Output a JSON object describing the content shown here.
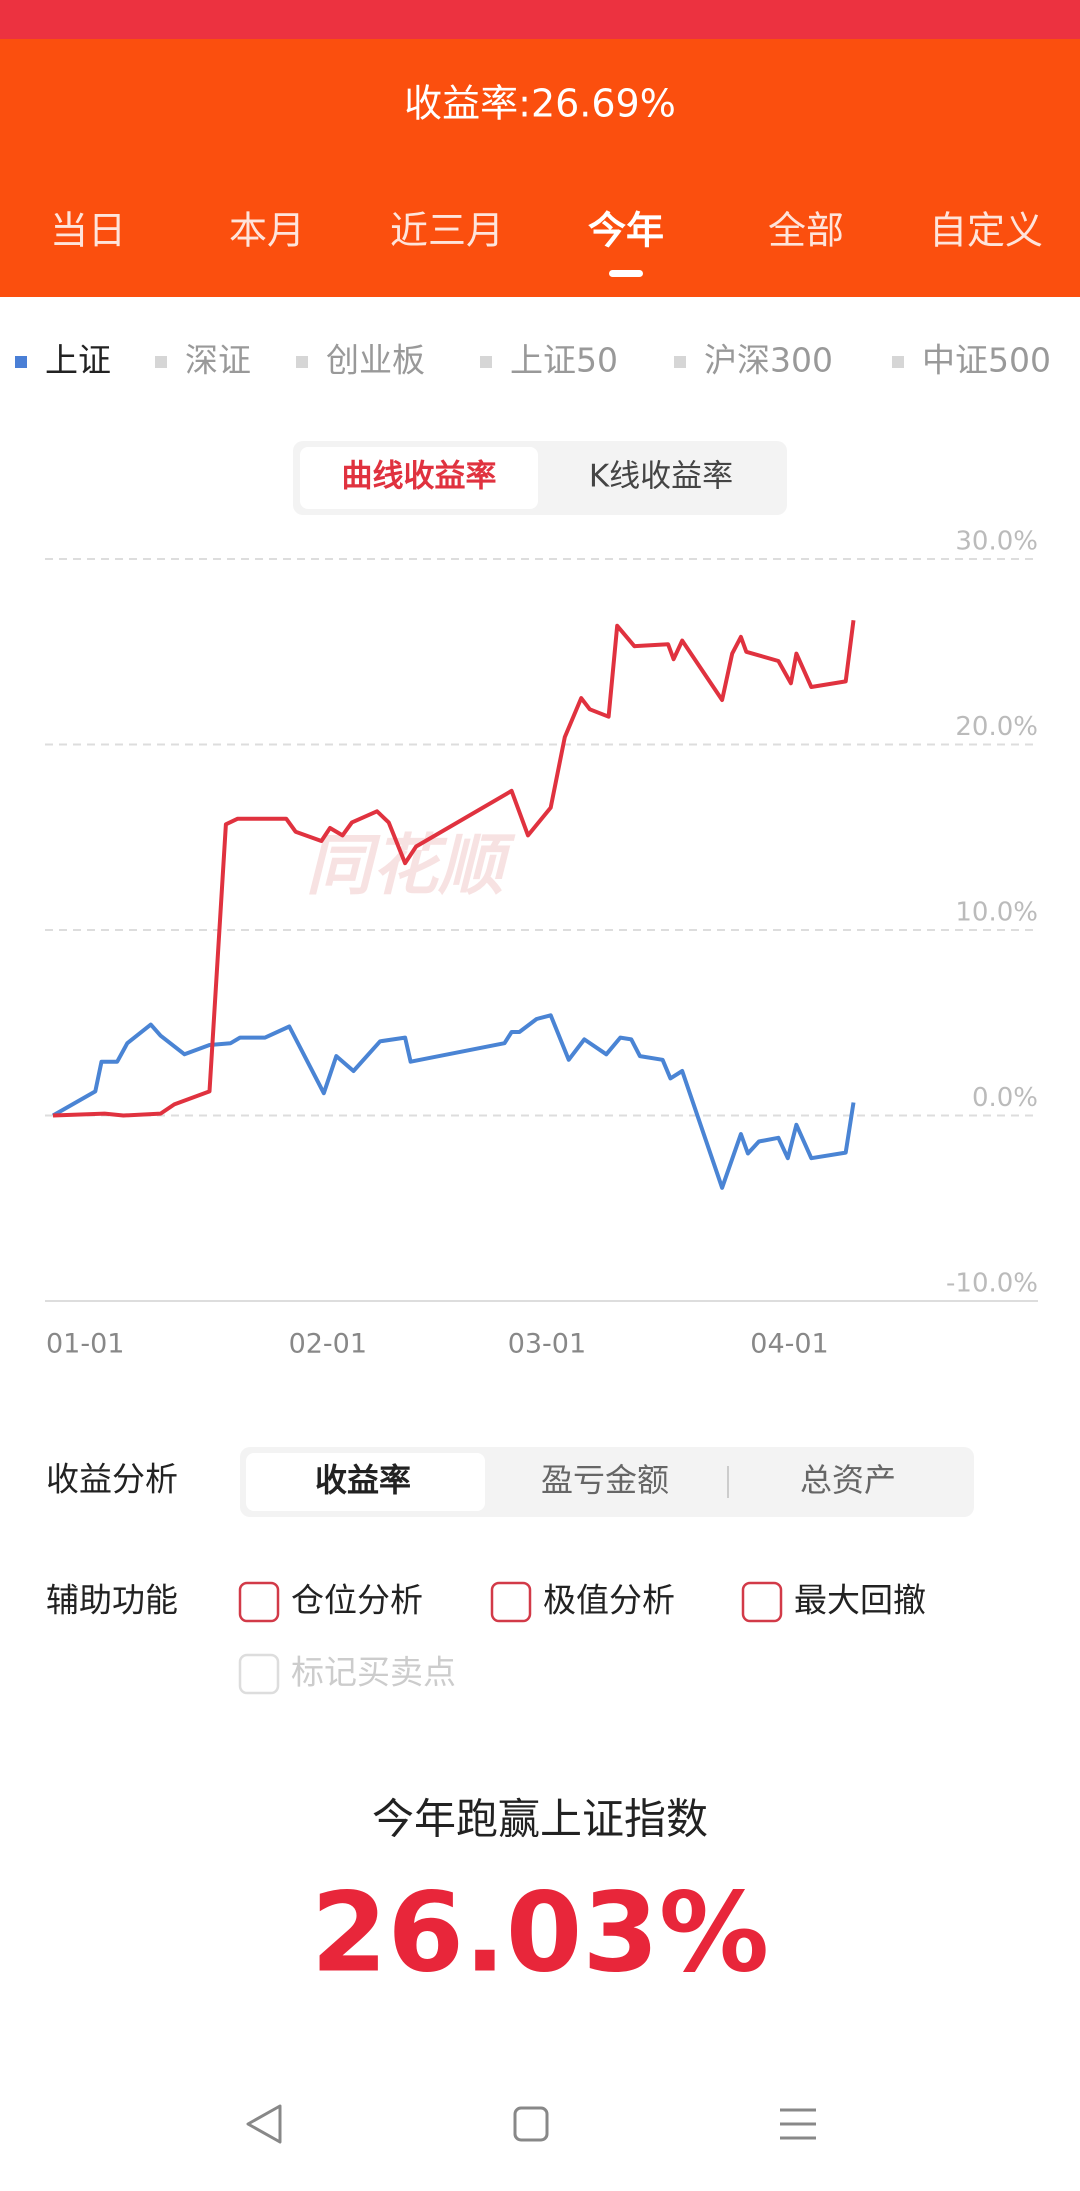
{
  "header": {
    "title": "收益率:26.69%",
    "tabs": [
      "当日",
      "本月",
      "近三月",
      "今年",
      "全部",
      "自定义"
    ]
  },
  "legend": [
    "上证",
    "深证",
    "创业板",
    "上证50",
    "沪深300",
    "中证500"
  ],
  "toggle": [
    "曲线收益率",
    "K线收益率"
  ],
  "chart_data": {
    "type": "line",
    "watermark": "同花顺",
    "grid": true,
    "xlim": [
      0,
      126
    ],
    "xticks": [
      {
        "value": 0,
        "label": "01-01"
      },
      {
        "value": 31,
        "label": "02-01"
      },
      {
        "value": 59,
        "label": "03-01"
      },
      {
        "value": 90,
        "label": "04-01"
      }
    ],
    "ylim": [
      -10,
      30
    ],
    "yticks": [
      {
        "value": 30,
        "label": "30.0%"
      },
      {
        "value": 20,
        "label": "20.0%"
      },
      {
        "value": 10,
        "label": "10.0%"
      },
      {
        "value": 0,
        "label": "0.0%"
      },
      {
        "value": -10,
        "label": "-10.0%"
      }
    ],
    "series": [
      {
        "color": "#e0323f",
        "x": [
          0,
          6.6,
          9,
          13.75,
          15.5,
          20,
          22.1,
          23.6,
          29.8,
          31,
          34.3,
          35.4,
          37,
          38.2,
          41.4,
          42.9,
          45,
          46.4,
          58.6,
          60.7,
          63.6,
          65.4,
          67.5,
          68.6,
          71,
          72.1,
          74.3,
          78.6,
          79.3,
          80.4,
          85.5,
          86.8,
          87.9,
          88.6,
          92.7,
          94.3,
          95,
          96.9,
          101.3,
          102.3
        ],
        "values": [
          0,
          0.1,
          0,
          0.1,
          0.6,
          1.3,
          15.7,
          16,
          16,
          15.3,
          14.8,
          15.5,
          15.1,
          15.8,
          16.4,
          15.8,
          13.6,
          14.5,
          17.5,
          15.1,
          16.6,
          20.4,
          22.5,
          21.9,
          21.5,
          26.4,
          25.3,
          25.4,
          24.6,
          25.6,
          22.4,
          24.9,
          25.8,
          25,
          24.5,
          23.3,
          24.9,
          23.1,
          23.4,
          26.7
        ]
      },
      {
        "color": "#4a84d4",
        "x": [
          0,
          5.4,
          6.2,
          8.2,
          9.5,
          12.5,
          13.75,
          16.8,
          20,
          22.7,
          23.9,
          27.1,
          30.2,
          34.6,
          36.2,
          38.4,
          41.8,
          45,
          45.7,
          57.7,
          58.6,
          59.6,
          61.8,
          63.6,
          65.9,
          67.9,
          70.7,
          72.5,
          73.9,
          75,
          77.9,
          78.9,
          80.4,
          85.5,
          87.9,
          88.8,
          90.2,
          92.7,
          93.9,
          95,
          96.9,
          101.3,
          102.3
        ],
        "values": [
          0,
          1.3,
          2.9,
          2.9,
          3.9,
          4.9,
          4.3,
          3.3,
          3.8,
          3.9,
          4.2,
          4.2,
          4.8,
          1.2,
          3.2,
          2.4,
          4,
          4.2,
          2.9,
          3.9,
          4.5,
          4.5,
          5.2,
          5.4,
          3,
          4.1,
          3.3,
          4.2,
          4.1,
          3.2,
          3,
          2,
          2.4,
          -3.9,
          -1,
          -2.05,
          -1.4,
          -1.2,
          -2.3,
          -0.5,
          -2.3,
          -2,
          0.7
        ]
      }
    ]
  },
  "analysis": {
    "label": "收益分析",
    "options": [
      "收益率",
      "盈亏金额",
      "总资产"
    ]
  },
  "aux": {
    "label": "辅助功能",
    "options": [
      "仓位分析",
      "极值分析",
      "最大回撤",
      "标记买卖点"
    ]
  },
  "summary": {
    "caption": "今年跑赢上证指数",
    "value": "26.03%"
  }
}
